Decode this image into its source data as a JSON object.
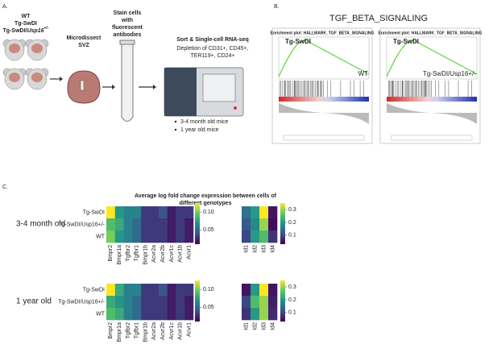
{
  "panel_a": {
    "label": "A.",
    "genotypes": [
      {
        "parts": [
          "WT"
        ]
      },
      {
        "parts": [
          "Tg-SwDI"
        ]
      },
      {
        "parts": [
          "Tg-SwDI/",
          "Usp16",
          "+/-"
        ]
      }
    ],
    "step1": [
      "Microdissect",
      "SVZ"
    ],
    "step2": [
      "Stain cells",
      "with",
      "fluorescent",
      "antibodies"
    ],
    "step3_title": "Sort & Single-cell RNA-seq",
    "step3_lines": [
      "Depletion of CD31+, CD45+,",
      "TER119+, CD24+"
    ],
    "bullets": [
      "3-4 month old mice",
      "1 year old mice"
    ]
  },
  "panel_b": {
    "label": "B.",
    "title": "TGF_BETA_SIGNALING",
    "plots": [
      {
        "title": "Enrichment plot: HALLMARK_TGF_BETA_SIGNALING",
        "left": "Tg-SwDI",
        "right": "WT"
      },
      {
        "title": "Enrichment plot: HALLMARK_TGF_BETA_SIGNALING",
        "left": "Tg-SwDI",
        "right": "Tg-SwDI/Usp16+/-"
      }
    ]
  },
  "panel_c": {
    "label": "C.",
    "title": [
      "Average log fold change expression between cells of",
      "different genotypes"
    ],
    "genotypes": [
      "Tg-SwDI",
      "Tg-SwDI/Usp16+/-",
      "WT"
    ],
    "blocks": [
      {
        "label": "3-4 month old",
        "heatmaps": [
          {
            "columns": [
              "Bmpr2",
              "Bmpr1a",
              "Tgfbr2",
              "Tgfbr1",
              "Bmpr1b",
              "Acvr2a",
              "Acvr2b",
              "Acvr1c",
              "Acvr1b",
              "Acvr1"
            ],
            "values": [
              [
                0.125,
                0.07,
                0.06,
                0.06,
                0.03,
                0.03,
                0.04,
                0.02,
                0.03,
                0.03
              ],
              [
                0.09,
                0.08,
                0.06,
                0.05,
                0.03,
                0.03,
                0.03,
                0.02,
                0.03,
                0.02
              ],
              [
                0.1,
                0.07,
                0.06,
                0.05,
                0.03,
                0.03,
                0.03,
                0.02,
                0.03,
                0.02
              ]
            ],
            "vlim": [
              0.01,
              0.125
            ],
            "ticks": [
              0.05,
              {
                "value": 0.1,
                "label": "0.10"
              }
            ]
          },
          {
            "columns": [
              "Id1",
              "Id2",
              "Id3",
              "Id4"
            ],
            "values": [
              [
                0.15,
                0.2,
                0.35,
                0.05
              ],
              [
                0.12,
                0.18,
                0.3,
                0.04
              ],
              [
                0.1,
                0.2,
                0.25,
                0.08
              ]
            ],
            "vlim": [
              0.03,
              0.35
            ],
            "ticks": [
              0.1,
              0.2,
              0.3
            ]
          }
        ]
      },
      {
        "label": "1 year old",
        "heatmaps": [
          {
            "columns": [
              "Bmpr2",
              "Bmpr1a",
              "Tgfbr2",
              "Tgfbr1",
              "Bmpr1b",
              "Acvr2a",
              "Acvr2b",
              "Acvr1c",
              "Acvr1b",
              "Acvr1"
            ],
            "values": [
              [
                0.125,
                0.08,
                0.06,
                0.06,
                0.03,
                0.03,
                0.04,
                0.02,
                0.03,
                0.03
              ],
              [
                0.08,
                0.07,
                0.06,
                0.05,
                0.03,
                0.03,
                0.03,
                0.02,
                0.03,
                0.02
              ],
              [
                0.09,
                0.08,
                0.06,
                0.05,
                0.03,
                0.03,
                0.03,
                0.02,
                0.03,
                0.02
              ]
            ],
            "vlim": [
              0.01,
              0.125
            ],
            "ticks": [
              0.05,
              {
                "value": 0.1,
                "label": "0.10"
              }
            ]
          },
          {
            "columns": [
              "Id1",
              "Id2",
              "Id3",
              "Id4"
            ],
            "values": [
              [
                0.05,
                0.2,
                0.35,
                0.05
              ],
              [
                0.1,
                0.25,
                0.3,
                0.06
              ],
              [
                0.08,
                0.2,
                0.3,
                0.07
              ]
            ],
            "vlim": [
              0.03,
              0.35
            ],
            "ticks": [
              0.1,
              0.2,
              0.3
            ]
          }
        ]
      }
    ]
  }
}
